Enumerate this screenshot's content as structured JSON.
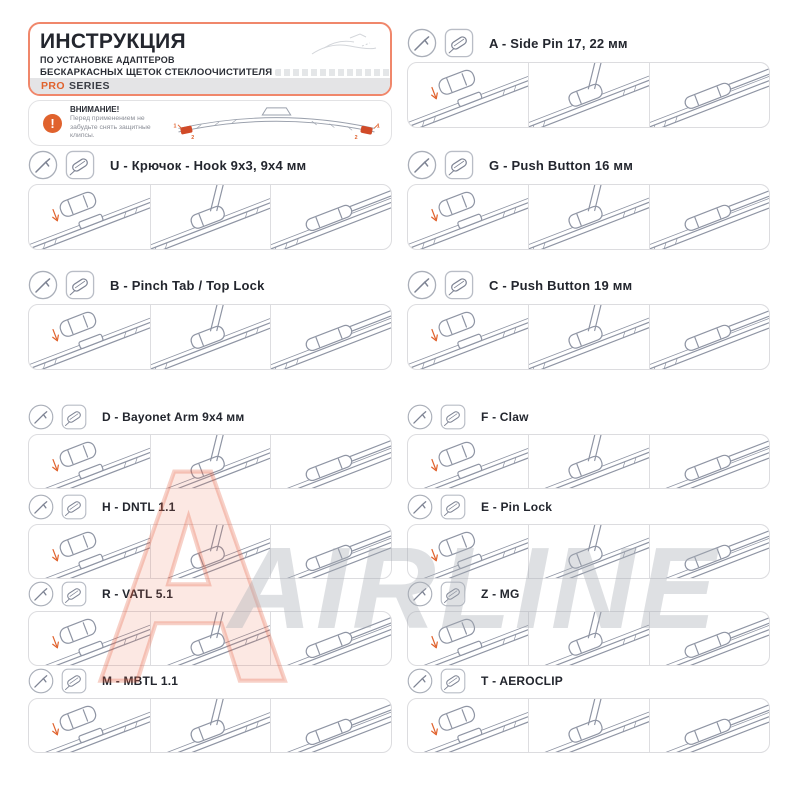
{
  "header": {
    "title": "ИНСТРУКЦИЯ",
    "line1": "ПО УСТАНОВКЕ АДАПТЕРОВ",
    "line2": "БЕСКАРКАСНЫХ ЩЕТОК СТЕКЛООЧИСТИТЕЛЯ",
    "series_pro": "PRO",
    "series_rest": "SERIES"
  },
  "warning": {
    "icon": "!",
    "title": "ВНИМАНИЕ!",
    "text": "Перед применением не забудьте снять защитные клипсы.",
    "marker1": "1",
    "marker2": "2"
  },
  "watermark": {
    "text": "AIRLINE"
  },
  "colors": {
    "accent": "#E0622D",
    "header_border": "#F0876B",
    "line_art": "#8F95A4",
    "series_bar": "#E4E4E6"
  },
  "icons": {
    "circle": "wiper-arm-icon",
    "square": "adapter-type-icon"
  },
  "sections": [
    {
      "id": "U",
      "title": "U - Крючок - Hook 9x3, 9x4 мм"
    },
    {
      "id": "B",
      "title": "B - Pinch Tab / Top Lock"
    },
    {
      "id": "D",
      "title": "D - Bayonet Arm 9x4 мм"
    },
    {
      "id": "H",
      "title": "H - DNTL 1.1"
    },
    {
      "id": "R",
      "title": "R - VATL 5.1"
    },
    {
      "id": "M",
      "title": "M - MBTL 1.1"
    },
    {
      "id": "A",
      "title": "A - Side Pin 17, 22 мм"
    },
    {
      "id": "G",
      "title": "G - Push Button 16 мм"
    },
    {
      "id": "C",
      "title": "C - Push Button 19 мм"
    },
    {
      "id": "F",
      "title": "F - Claw"
    },
    {
      "id": "E",
      "title": "E - Pin Lock"
    },
    {
      "id": "Z",
      "title": "Z - MG"
    },
    {
      "id": "T",
      "title": "T - AEROCLIP"
    }
  ]
}
